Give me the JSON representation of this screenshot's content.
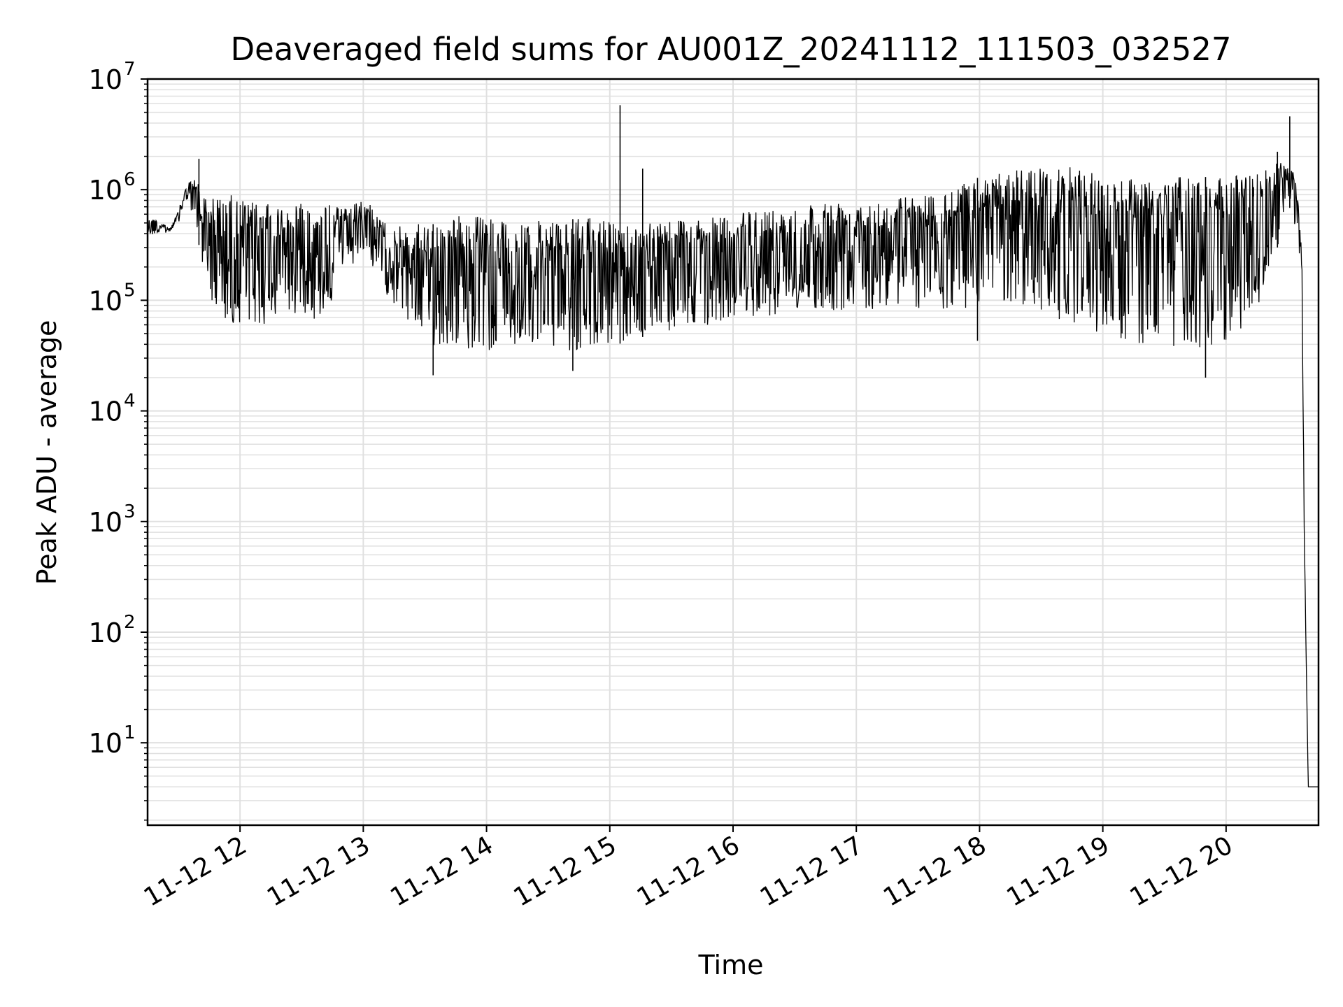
{
  "chart_data": {
    "type": "line",
    "title": "Deaveraged field sums for AU001Z_20241112_111503_032527",
    "xlabel": "Time",
    "ylabel": "Peak ADU - average",
    "yscale": "log",
    "ylim": [
      1.8,
      10000000
    ],
    "xlim": [
      "2024-11-12 11:15",
      "2024-11-12 20:45"
    ],
    "grid": true,
    "line_color": "#000000",
    "grid_color": "#e0e0e0",
    "x_ticks": [
      {
        "value": "2024-11-12 12:00",
        "label": "11-12 12"
      },
      {
        "value": "2024-11-12 13:00",
        "label": "11-12 13"
      },
      {
        "value": "2024-11-12 14:00",
        "label": "11-12 14"
      },
      {
        "value": "2024-11-12 15:00",
        "label": "11-12 15"
      },
      {
        "value": "2024-11-12 16:00",
        "label": "11-12 16"
      },
      {
        "value": "2024-11-12 17:00",
        "label": "11-12 17"
      },
      {
        "value": "2024-11-12 18:00",
        "label": "11-12 18"
      },
      {
        "value": "2024-11-12 19:00",
        "label": "11-12 19"
      },
      {
        "value": "2024-11-12 20:00",
        "label": "11-12 20"
      }
    ],
    "y_ticks": [
      {
        "value": 10,
        "base": "10",
        "exp": "1"
      },
      {
        "value": 100,
        "base": "10",
        "exp": "2"
      },
      {
        "value": 1000,
        "base": "10",
        "exp": "3"
      },
      {
        "value": 10000,
        "base": "10",
        "exp": "4"
      },
      {
        "value": 100000,
        "base": "10",
        "exp": "5"
      },
      {
        "value": 1000000,
        "base": "10",
        "exp": "6"
      },
      {
        "value": 10000000,
        "base": "10",
        "exp": "7"
      }
    ],
    "series": [
      {
        "x": [
          "2024-11-12 11:15",
          "2024-11-12 11:18",
          "2024-11-12 11:22",
          "2024-11-12 11:26",
          "2024-11-12 11:30",
          "2024-11-12 11:34",
          "2024-11-12 11:38",
          "2024-11-12 11:42",
          "2024-11-12 11:46",
          "2024-11-12 11:52",
          "2024-11-12 11:56",
          "2024-11-12 12:04",
          "2024-11-12 12:12",
          "2024-11-12 12:20",
          "2024-11-12 12:30",
          "2024-11-12 12:38",
          "2024-11-12 12:46",
          "2024-11-12 12:54",
          "2024-11-12 13:02",
          "2024-11-12 13:08",
          "2024-11-12 13:14",
          "2024-11-12 13:22",
          "2024-11-12 13:30",
          "2024-11-12 13:40",
          "2024-11-12 13:50",
          "2024-11-12 13:58",
          "2024-11-12 14:10",
          "2024-11-12 14:20",
          "2024-11-12 14:32",
          "2024-11-12 14:44",
          "2024-11-12 14:52",
          "2024-11-12 15:00",
          "2024-11-12 15:04",
          "2024-11-12 15:12",
          "2024-11-12 15:24",
          "2024-11-12 15:36",
          "2024-11-12 15:48",
          "2024-11-12 16:00",
          "2024-11-12 16:12",
          "2024-11-12 16:24",
          "2024-11-12 16:36",
          "2024-11-12 16:48",
          "2024-11-12 17:00",
          "2024-11-12 17:15",
          "2024-11-12 17:30",
          "2024-11-12 17:45",
          "2024-11-12 18:00",
          "2024-11-12 18:15",
          "2024-11-12 18:30",
          "2024-11-12 18:45",
          "2024-11-12 19:00",
          "2024-11-12 19:15",
          "2024-11-12 19:30",
          "2024-11-12 19:45",
          "2024-11-12 20:00",
          "2024-11-12 20:15",
          "2024-11-12 20:25",
          "2024-11-12 20:30",
          "2024-11-12 20:33",
          "2024-11-12 20:35",
          "2024-11-12 20:37",
          "2024-11-12 20:38",
          "2024-11-12 20:40",
          "2024-11-12 20:45"
        ],
        "upper": [
          600000,
          550000,
          500000,
          450000,
          650000,
          1100000,
          1300000,
          1000000,
          900000,
          800000,
          900000,
          800000,
          750000,
          700000,
          800000,
          700000,
          750000,
          750000,
          800000,
          550000,
          450000,
          500000,
          480000,
          500000,
          650000,
          550000,
          550000,
          550000,
          500000,
          550000,
          550000,
          520000,
          480000,
          500000,
          550000,
          550000,
          550000,
          600000,
          650000,
          700000,
          750000,
          800000,
          800000,
          850000,
          900000,
          1000000,
          1300000,
          1500000,
          1600000,
          1600000,
          1400000,
          1300000,
          1300000,
          1300000,
          1300000,
          1500000,
          1800000,
          1700000,
          1400000,
          900000,
          300000,
          1000,
          4,
          4
        ],
        "lower": [
          350000,
          400000,
          380000,
          420000,
          500000,
          800000,
          500000,
          200000,
          100000,
          60000,
          55000,
          50000,
          60000,
          70000,
          80000,
          60000,
          100000,
          200000,
          250000,
          150000,
          90000,
          60000,
          40000,
          35000,
          35000,
          35000,
          35000,
          40000,
          35000,
          35000,
          35000,
          40000,
          40000,
          45000,
          50000,
          55000,
          60000,
          70000,
          70000,
          75000,
          80000,
          80000,
          80000,
          80000,
          80000,
          80000,
          90000,
          90000,
          80000,
          60000,
          50000,
          40000,
          35000,
          35000,
          40000,
          80000,
          300000,
          800000,
          500000,
          300000,
          100000,
          800,
          4,
          4
        ],
        "spikes": [
          {
            "x": "2024-11-12 11:40",
            "y": 1900000
          },
          {
            "x": "2024-11-12 15:05",
            "y": 5800000
          },
          {
            "x": "2024-11-12 15:16",
            "y": 1550000
          },
          {
            "x": "2024-11-12 20:25",
            "y": 2200000
          },
          {
            "x": "2024-11-12 20:31",
            "y": 4600000
          }
        ],
        "dips": [
          {
            "x": "2024-11-12 13:34",
            "y": 21000
          },
          {
            "x": "2024-11-12 14:42",
            "y": 23000
          },
          {
            "x": "2024-11-12 17:59",
            "y": 43000
          },
          {
            "x": "2024-11-12 19:50",
            "y": 20000
          }
        ]
      }
    ]
  }
}
